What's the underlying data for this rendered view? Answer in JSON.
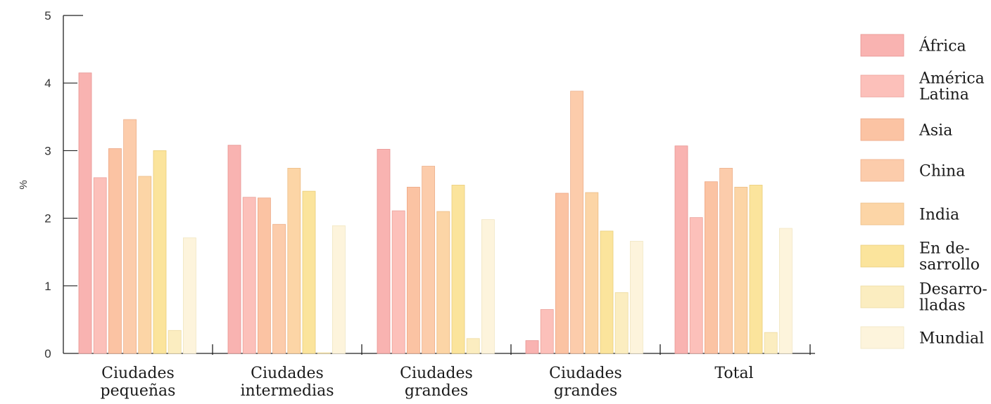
{
  "chart_data": {
    "type": "bar",
    "ylabel": "%",
    "ylim": [
      0,
      5
    ],
    "yticks": [
      "0",
      "1",
      "2",
      "3",
      "4",
      "5"
    ],
    "categories": [
      [
        "Ciudades",
        "pequeñas"
      ],
      [
        "Ciudades",
        "intermedias"
      ],
      [
        "Ciudades",
        "grandes"
      ],
      [
        "Ciudades",
        "grandes"
      ],
      [
        "Total"
      ]
    ],
    "legend_position": "right",
    "series": [
      {
        "name": [
          "África"
        ],
        "color": "#f9b3b1",
        "stroke": "#e79491",
        "values": [
          4.15,
          3.08,
          3.02,
          0.19,
          3.07
        ]
      },
      {
        "name": [
          "América",
          "Latina"
        ],
        "color": "#fcc0ba",
        "stroke": "#eba29b",
        "values": [
          2.6,
          2.31,
          2.11,
          0.65,
          2.01
        ]
      },
      {
        "name": [
          "Asia"
        ],
        "color": "#fbc3a3",
        "stroke": "#eda684",
        "values": [
          3.03,
          2.3,
          2.46,
          2.37,
          2.54
        ]
      },
      {
        "name": [
          "China"
        ],
        "color": "#fcccab",
        "stroke": "#edb08c",
        "values": [
          3.46,
          1.91,
          2.77,
          3.88,
          2.74
        ]
      },
      {
        "name": [
          "India"
        ],
        "color": "#fcd5a6",
        "stroke": "#ecbd86",
        "values": [
          2.62,
          2.74,
          2.1,
          2.38,
          2.46
        ]
      },
      {
        "name": [
          "En de-",
          "sarrollo"
        ],
        "color": "#fbe49c",
        "stroke": "#eacd7a",
        "values": [
          3.0,
          2.4,
          2.49,
          1.81,
          2.49
        ]
      },
      {
        "name": [
          "Desarro-",
          "lladas"
        ],
        "color": "#fbedc0",
        "stroke": "#eedba0",
        "values": [
          0.34,
          0.01,
          0.22,
          0.9,
          0.31
        ]
      },
      {
        "name": [
          "Mundial"
        ],
        "color": "#fdf4dc",
        "stroke": "#f1e6c2",
        "values": [
          1.71,
          1.89,
          1.98,
          1.66,
          1.85
        ]
      }
    ]
  }
}
